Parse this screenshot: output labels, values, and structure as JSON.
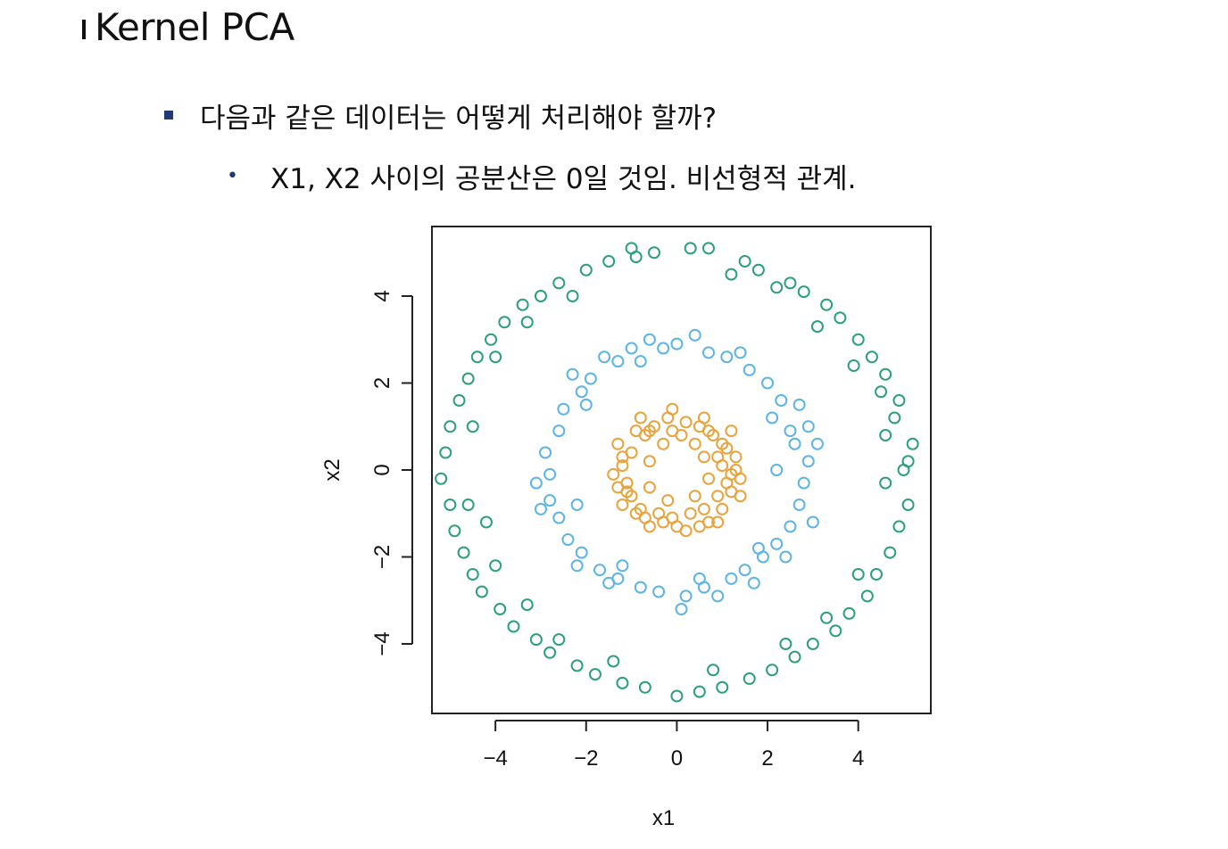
{
  "slide": {
    "title": "Kernel PCA",
    "bullet1": "다음과 같은 데이터는 어떻게 처리해야 할까?",
    "bullet2": "X1, X2 사이의 공분산은 0일 것임. 비선형적 관계."
  },
  "chart_data": {
    "type": "scatter",
    "title": "",
    "xlabel": "x1",
    "ylabel": "x2",
    "xlim": [
      -5.4,
      5.6
    ],
    "ylim": [
      -5.6,
      5.6
    ],
    "xticks": [
      -4,
      -2,
      0,
      2,
      4
    ],
    "yticks": [
      -4,
      -2,
      0,
      2,
      4
    ],
    "xtick_labels": [
      "−4",
      "−2",
      "0",
      "2",
      "4"
    ],
    "ytick_labels": [
      "−4",
      "−2",
      "0",
      "2",
      "4"
    ],
    "grid": false,
    "marker": "open-circle",
    "series": [
      {
        "color": "#e8a33d",
        "points": [
          [
            1.0,
            0.1
          ],
          [
            0.8,
            0.8
          ],
          [
            0.2,
            1.1
          ],
          [
            -0.5,
            1.0
          ],
          [
            -1.0,
            0.4
          ],
          [
            -1.1,
            -0.3
          ],
          [
            -0.8,
            -0.9
          ],
          [
            -0.1,
            -1.1
          ],
          [
            0.6,
            -0.9
          ],
          [
            1.1,
            -0.3
          ],
          [
            1.3,
            0.3
          ],
          [
            1.2,
            0.9
          ],
          [
            0.6,
            1.2
          ],
          [
            -0.1,
            1.4
          ],
          [
            -0.8,
            1.2
          ],
          [
            -1.3,
            0.6
          ],
          [
            -1.4,
            -0.1
          ],
          [
            -1.2,
            -0.8
          ],
          [
            -0.6,
            -1.3
          ],
          [
            0.2,
            -1.4
          ],
          [
            0.9,
            -1.2
          ],
          [
            1.4,
            -0.6
          ],
          [
            0.6,
            0.3
          ],
          [
            0.4,
            0.6
          ],
          [
            -0.3,
            0.6
          ],
          [
            -0.6,
            0.2
          ],
          [
            -0.6,
            -0.4
          ],
          [
            -0.2,
            -0.7
          ],
          [
            0.4,
            -0.6
          ],
          [
            0.7,
            -0.2
          ],
          [
            1.4,
            -0.2
          ],
          [
            1.0,
            0.6
          ],
          [
            0.1,
            0.8
          ],
          [
            -0.7,
            0.8
          ],
          [
            -1.2,
            0.1
          ],
          [
            -1.0,
            -0.6
          ],
          [
            -0.4,
            -1.0
          ],
          [
            0.3,
            -1.0
          ],
          [
            0.9,
            -0.6
          ],
          [
            1.2,
            -0.1
          ],
          [
            0.9,
            0.3
          ],
          [
            0.5,
            1.0
          ],
          [
            -0.2,
            1.2
          ],
          [
            -0.9,
            0.9
          ],
          [
            -1.2,
            0.3
          ],
          [
            -1.1,
            -0.5
          ],
          [
            -0.7,
            -1.1
          ],
          [
            0.0,
            -1.3
          ],
          [
            0.7,
            -1.2
          ],
          [
            1.2,
            -0.5
          ],
          [
            1.1,
            0.5
          ],
          [
            0.7,
            0.9
          ],
          [
            -0.1,
            0.9
          ],
          [
            -0.6,
            0.9
          ],
          [
            -1.3,
            -0.4
          ],
          [
            -0.9,
            -1.0
          ],
          [
            -0.3,
            -1.2
          ],
          [
            0.5,
            -1.3
          ],
          [
            1.0,
            -0.9
          ],
          [
            1.3,
            0.0
          ]
        ]
      },
      {
        "color": "#5db4e5",
        "points": [
          [
            2.6,
            0.6
          ],
          [
            2.3,
            1.6
          ],
          [
            1.6,
            2.3
          ],
          [
            0.7,
            2.7
          ],
          [
            -0.3,
            2.8
          ],
          [
            -1.3,
            2.5
          ],
          [
            -2.1,
            1.8
          ],
          [
            -2.6,
            0.9
          ],
          [
            -2.8,
            -0.1
          ],
          [
            -2.6,
            -1.1
          ],
          [
            -2.1,
            -1.9
          ],
          [
            -1.3,
            -2.5
          ],
          [
            -0.4,
            -2.8
          ],
          [
            0.6,
            -2.7
          ],
          [
            1.5,
            -2.3
          ],
          [
            2.2,
            -1.7
          ],
          [
            2.7,
            -0.8
          ],
          [
            2.9,
            0.2
          ],
          [
            2.9,
            1.0
          ],
          [
            2.0,
            2.0
          ],
          [
            1.1,
            2.6
          ],
          [
            0.0,
            2.9
          ],
          [
            -1.0,
            2.8
          ],
          [
            -1.9,
            2.1
          ],
          [
            -2.5,
            1.4
          ],
          [
            -2.9,
            0.4
          ],
          [
            -2.8,
            -0.7
          ],
          [
            -2.4,
            -1.6
          ],
          [
            -1.7,
            -2.3
          ],
          [
            -0.8,
            -2.7
          ],
          [
            0.2,
            -2.9
          ],
          [
            1.2,
            -2.5
          ],
          [
            1.9,
            -2.0
          ],
          [
            2.5,
            -1.3
          ],
          [
            2.8,
            -0.3
          ],
          [
            3.1,
            0.6
          ],
          [
            2.7,
            1.5
          ],
          [
            1.4,
            2.7
          ],
          [
            -0.6,
            3.0
          ],
          [
            -1.6,
            2.6
          ],
          [
            -2.3,
            2.2
          ],
          [
            -3.1,
            -0.3
          ],
          [
            -3.0,
            -0.9
          ],
          [
            -2.2,
            -2.2
          ],
          [
            -1.5,
            -2.6
          ],
          [
            0.1,
            -3.2
          ],
          [
            0.9,
            -2.9
          ],
          [
            1.7,
            -2.6
          ],
          [
            2.4,
            -2.0
          ],
          [
            3.0,
            -1.2
          ],
          [
            2.5,
            0.9
          ],
          [
            2.1,
            1.2
          ],
          [
            0.4,
            3.1
          ],
          [
            -0.8,
            2.5
          ],
          [
            -2.0,
            1.5
          ],
          [
            -2.2,
            -0.8
          ],
          [
            -1.2,
            -2.2
          ],
          [
            0.5,
            -2.5
          ],
          [
            1.8,
            -1.8
          ],
          [
            2.2,
            0.0
          ]
        ]
      },
      {
        "color": "#2ca07a",
        "points": [
          [
            5.0,
            0.0
          ],
          [
            4.8,
            1.2
          ],
          [
            4.6,
            2.2
          ],
          [
            4.0,
            3.0
          ],
          [
            3.3,
            3.8
          ],
          [
            2.5,
            4.3
          ],
          [
            1.5,
            4.8
          ],
          [
            0.3,
            5.1
          ],
          [
            -0.9,
            4.9
          ],
          [
            -2.0,
            4.6
          ],
          [
            -3.0,
            4.0
          ],
          [
            -3.8,
            3.4
          ],
          [
            -4.4,
            2.6
          ],
          [
            -4.8,
            1.6
          ],
          [
            -5.1,
            0.4
          ],
          [
            -5.0,
            -0.8
          ],
          [
            -4.7,
            -1.9
          ],
          [
            -4.3,
            -2.8
          ],
          [
            -3.6,
            -3.6
          ],
          [
            -2.8,
            -4.2
          ],
          [
            -1.8,
            -4.7
          ],
          [
            -0.7,
            -5.0
          ],
          [
            0.5,
            -5.1
          ],
          [
            1.6,
            -4.8
          ],
          [
            2.6,
            -4.3
          ],
          [
            3.5,
            -3.7
          ],
          [
            4.2,
            -2.9
          ],
          [
            4.7,
            -1.9
          ],
          [
            5.1,
            -0.8
          ],
          [
            5.2,
            0.6
          ],
          [
            4.9,
            1.6
          ],
          [
            4.3,
            2.6
          ],
          [
            3.6,
            3.5
          ],
          [
            2.8,
            4.1
          ],
          [
            1.8,
            4.6
          ],
          [
            0.7,
            5.1
          ],
          [
            -0.5,
            5.0
          ],
          [
            -1.5,
            4.8
          ],
          [
            -2.6,
            4.3
          ],
          [
            -3.4,
            3.8
          ],
          [
            -4.1,
            3.0
          ],
          [
            -4.6,
            2.1
          ],
          [
            -5.0,
            1.0
          ],
          [
            -5.2,
            -0.2
          ],
          [
            -4.9,
            -1.4
          ],
          [
            -4.5,
            -2.4
          ],
          [
            -3.9,
            -3.2
          ],
          [
            -3.1,
            -3.9
          ],
          [
            -2.2,
            -4.5
          ],
          [
            -1.2,
            -4.9
          ],
          [
            0.0,
            -5.2
          ],
          [
            1.0,
            -5.0
          ],
          [
            2.1,
            -4.6
          ],
          [
            3.0,
            -4.0
          ],
          [
            3.8,
            -3.3
          ],
          [
            4.4,
            -2.4
          ],
          [
            4.9,
            -1.3
          ],
          [
            5.1,
            0.2
          ],
          [
            4.6,
            0.8
          ],
          [
            4.5,
            1.8
          ],
          [
            3.9,
            2.4
          ],
          [
            3.1,
            3.3
          ],
          [
            2.2,
            4.2
          ],
          [
            1.2,
            4.5
          ],
          [
            -1.0,
            5.1
          ],
          [
            -2.3,
            4.0
          ],
          [
            -3.3,
            3.4
          ],
          [
            -4.0,
            2.6
          ],
          [
            -4.5,
            1.0
          ],
          [
            -4.6,
            -0.8
          ],
          [
            -4.2,
            -1.2
          ],
          [
            -4.0,
            -2.2
          ],
          [
            -3.3,
            -3.1
          ],
          [
            -2.6,
            -3.9
          ],
          [
            -1.4,
            -4.4
          ],
          [
            0.8,
            -4.6
          ],
          [
            2.4,
            -4.0
          ],
          [
            3.3,
            -3.4
          ],
          [
            4.0,
            -2.4
          ],
          [
            4.6,
            -0.3
          ]
        ]
      }
    ]
  }
}
